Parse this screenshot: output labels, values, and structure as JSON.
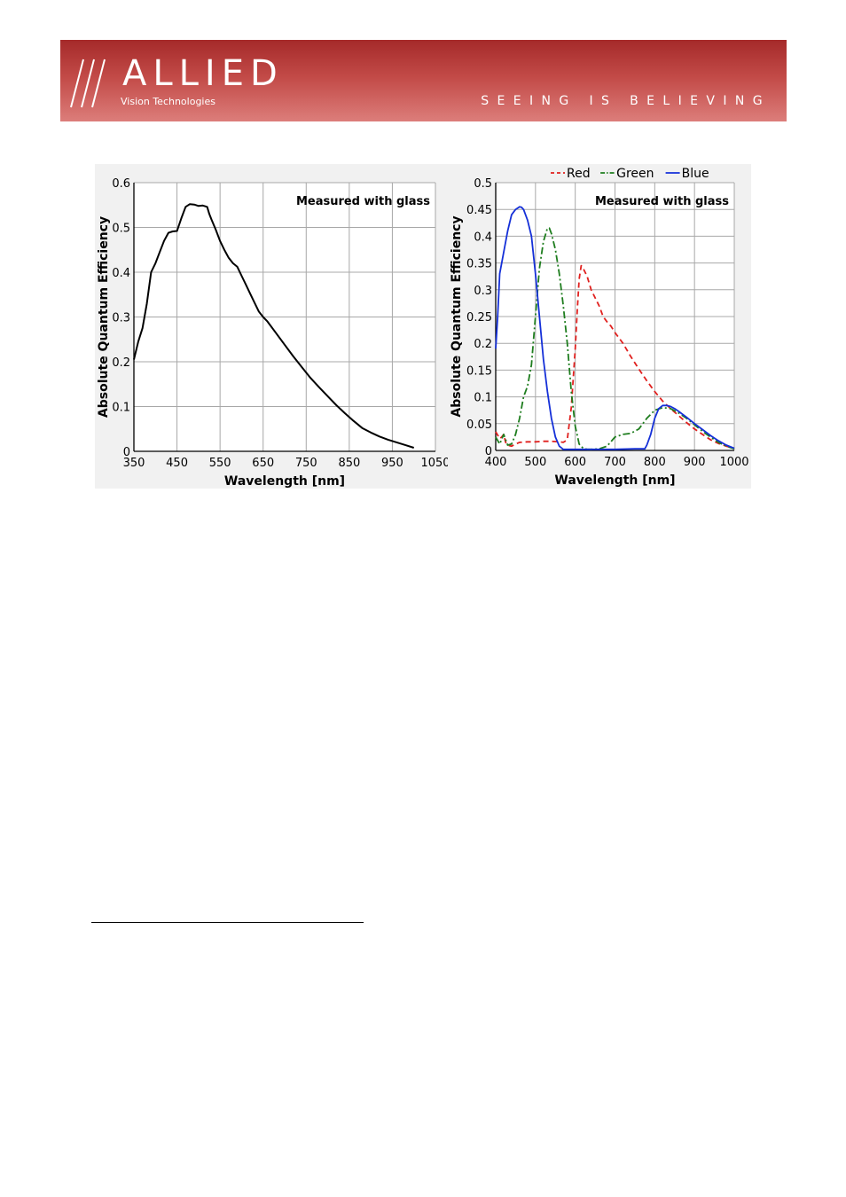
{
  "header": {
    "logo_text": "///ALLIED",
    "logo_subtitle": "Vision Technologies",
    "tagline": "SEEING IS BELIEVING",
    "colors": {
      "banner_top": "#a52a2a",
      "banner_bottom": "#dc7d7a",
      "text": "#ffffff"
    }
  },
  "chart_data": [
    {
      "type": "line",
      "annotation": "Measured with glass",
      "xlabel": "Wavelength [nm]",
      "ylabel": "Absolute Quantum Efficiency",
      "xlim": [
        350,
        1050
      ],
      "ylim": [
        0,
        0.6
      ],
      "xticks": [
        "350",
        "450",
        "550",
        "650",
        "750",
        "850",
        "950",
        "1050"
      ],
      "yticks": [
        "0",
        "0.1",
        "0.2",
        "0.3",
        "0.4",
        "0.5",
        "0.6"
      ],
      "grid": true,
      "series": [
        {
          "color": "#000000",
          "dash": "solid",
          "x": [
            350,
            360,
            370,
            380,
            390,
            400,
            410,
            420,
            430,
            440,
            450,
            460,
            470,
            480,
            490,
            500,
            510,
            520,
            525,
            530,
            540,
            550,
            560,
            570,
            580,
            590,
            600,
            610,
            620,
            630,
            640,
            650,
            660,
            680,
            700,
            720,
            740,
            760,
            780,
            800,
            820,
            840,
            860,
            880,
            900,
            920,
            940,
            960,
            980,
            1000
          ],
          "y": [
            0.205,
            0.245,
            0.275,
            0.33,
            0.4,
            0.42,
            0.445,
            0.47,
            0.488,
            0.491,
            0.492,
            0.52,
            0.546,
            0.552,
            0.551,
            0.548,
            0.549,
            0.546,
            0.53,
            0.518,
            0.495,
            0.47,
            0.45,
            0.432,
            0.42,
            0.412,
            0.392,
            0.372,
            0.352,
            0.332,
            0.312,
            0.3,
            0.29,
            0.264,
            0.238,
            0.212,
            0.188,
            0.164,
            0.143,
            0.123,
            0.103,
            0.085,
            0.068,
            0.052,
            0.042,
            0.033,
            0.026,
            0.02,
            0.014,
            0.008
          ]
        }
      ]
    },
    {
      "type": "line",
      "annotation": "Measured with glass",
      "xlabel": "Wavelength [nm]",
      "ylabel": "Absolute Quantum Efficiency",
      "xlim": [
        400,
        1000
      ],
      "ylim": [
        0,
        0.5
      ],
      "xticks": [
        "400",
        "500",
        "600",
        "700",
        "800",
        "900",
        "1000"
      ],
      "yticks": [
        "0",
        "0.05",
        "0.1",
        "0.15",
        "0.2",
        "0.25",
        "0.3",
        "0.35",
        "0.4",
        "0.45",
        "0.5"
      ],
      "grid": true,
      "legend_position": "top",
      "series": [
        {
          "name": "Red",
          "color": "#e0201e",
          "dash": "dashed",
          "x": [
            400,
            410,
            415,
            420,
            425,
            430,
            440,
            450,
            460,
            480,
            500,
            520,
            540,
            560,
            570,
            580,
            590,
            600,
            605,
            610,
            615,
            620,
            630,
            640,
            650,
            660,
            670,
            680,
            690,
            700,
            720,
            740,
            760,
            780,
            800,
            820,
            840,
            860,
            880,
            900,
            920,
            940,
            960,
            980,
            1000
          ],
          "y": [
            0.035,
            0.022,
            0.025,
            0.03,
            0.015,
            0.01,
            0.008,
            0.012,
            0.015,
            0.016,
            0.016,
            0.017,
            0.017,
            0.016,
            0.015,
            0.02,
            0.08,
            0.19,
            0.26,
            0.32,
            0.345,
            0.34,
            0.325,
            0.3,
            0.285,
            0.27,
            0.25,
            0.24,
            0.232,
            0.22,
            0.2,
            0.175,
            0.152,
            0.13,
            0.11,
            0.092,
            0.078,
            0.065,
            0.052,
            0.04,
            0.03,
            0.02,
            0.013,
            0.008,
            0.004
          ]
        },
        {
          "name": "Green",
          "color": "#1e7d1e",
          "dash": "dashdot",
          "x": [
            400,
            410,
            420,
            430,
            440,
            450,
            460,
            470,
            480,
            490,
            500,
            510,
            520,
            530,
            535,
            540,
            550,
            560,
            570,
            580,
            590,
            600,
            610,
            620,
            630,
            640,
            660,
            680,
            700,
            720,
            740,
            760,
            780,
            800,
            820,
            840,
            860,
            880,
            900,
            920,
            940,
            960,
            980,
            1000
          ],
          "y": [
            0.025,
            0.012,
            0.03,
            0.01,
            0.012,
            0.03,
            0.06,
            0.1,
            0.12,
            0.16,
            0.25,
            0.34,
            0.39,
            0.415,
            0.415,
            0.405,
            0.375,
            0.33,
            0.27,
            0.2,
            0.11,
            0.045,
            0.012,
            0.004,
            0.002,
            0.002,
            0.003,
            0.008,
            0.025,
            0.03,
            0.032,
            0.04,
            0.06,
            0.075,
            0.08,
            0.078,
            0.07,
            0.06,
            0.048,
            0.036,
            0.025,
            0.015,
            0.008,
            0.003
          ]
        },
        {
          "name": "Blue",
          "color": "#1530d8",
          "dash": "solid",
          "x": [
            400,
            405,
            410,
            420,
            430,
            440,
            450,
            460,
            465,
            470,
            480,
            490,
            500,
            510,
            520,
            530,
            540,
            550,
            560,
            570,
            580,
            600,
            650,
            700,
            750,
            775,
            780,
            790,
            800,
            810,
            820,
            830,
            840,
            850,
            860,
            880,
            900,
            920,
            940,
            960,
            980,
            1000
          ],
          "y": [
            0.19,
            0.25,
            0.33,
            0.37,
            0.41,
            0.44,
            0.45,
            0.455,
            0.454,
            0.45,
            0.43,
            0.4,
            0.33,
            0.25,
            0.17,
            0.11,
            0.06,
            0.025,
            0.008,
            0.002,
            0.002,
            0.002,
            0.002,
            0.002,
            0.003,
            0.003,
            0.01,
            0.03,
            0.06,
            0.078,
            0.084,
            0.084,
            0.082,
            0.078,
            0.073,
            0.062,
            0.05,
            0.039,
            0.028,
            0.018,
            0.01,
            0.004
          ]
        }
      ]
    }
  ]
}
